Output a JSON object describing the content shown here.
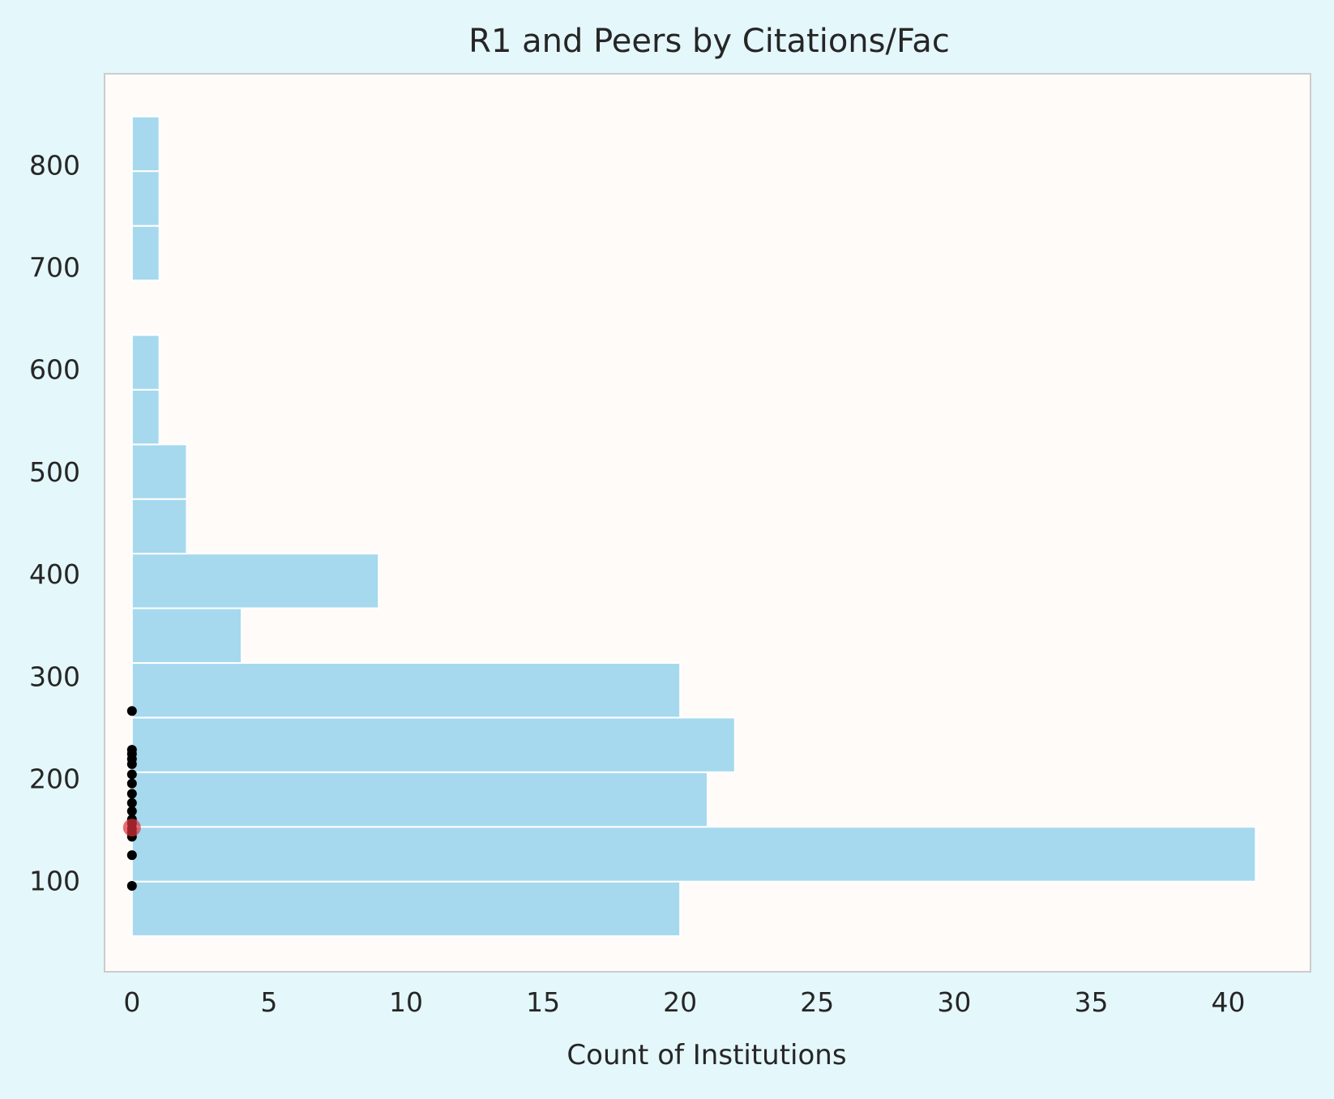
{
  "colors": {
    "page_background": "#e4f7fb",
    "plot_background": "#fffbf9",
    "bar_fill": "#a6d9ed",
    "bar_edge": "#ffffff",
    "frame": "#cccccc",
    "point": "#000000",
    "highlight_point": "#e0323c"
  },
  "chart_data": {
    "type": "bar",
    "orientation": "horizontal",
    "title": "R1 and Peers by Citations/Fac",
    "xlabel": "Count of Institutions",
    "ylabel": "",
    "xlim": [
      -1,
      43
    ],
    "ylim": [
      11,
      889
    ],
    "grid": false,
    "x_ticks": [
      0,
      5,
      10,
      15,
      20,
      25,
      30,
      35,
      40
    ],
    "y_ticks": [
      100,
      200,
      300,
      400,
      500,
      600,
      700,
      800
    ],
    "bins": [
      {
        "y_start": 45.8,
        "y_end": 99.2,
        "count": 20
      },
      {
        "y_start": 99.2,
        "y_end": 152.7,
        "count": 41
      },
      {
        "y_start": 152.7,
        "y_end": 206.1,
        "count": 21
      },
      {
        "y_start": 206.1,
        "y_end": 259.5,
        "count": 22
      },
      {
        "y_start": 259.5,
        "y_end": 312.9,
        "count": 20
      },
      {
        "y_start": 312.9,
        "y_end": 366.4,
        "count": 4
      },
      {
        "y_start": 366.4,
        "y_end": 419.8,
        "count": 9
      },
      {
        "y_start": 419.8,
        "y_end": 473.2,
        "count": 2
      },
      {
        "y_start": 473.2,
        "y_end": 526.6,
        "count": 2
      },
      {
        "y_start": 526.6,
        "y_end": 580.1,
        "count": 1
      },
      {
        "y_start": 580.1,
        "y_end": 633.5,
        "count": 1
      },
      {
        "y_start": 633.5,
        "y_end": 686.9,
        "count": 0
      },
      {
        "y_start": 686.9,
        "y_end": 740.3,
        "count": 1
      },
      {
        "y_start": 740.3,
        "y_end": 793.8,
        "count": 1
      },
      {
        "y_start": 793.8,
        "y_end": 847.2,
        "count": 1
      }
    ],
    "points": {
      "x": 0,
      "y": [
        95,
        125,
        143,
        147,
        151,
        156,
        160,
        168,
        176,
        185,
        195,
        204,
        214,
        219,
        224,
        228,
        266
      ]
    },
    "highlight": {
      "x": 0,
      "y": 152
    }
  }
}
